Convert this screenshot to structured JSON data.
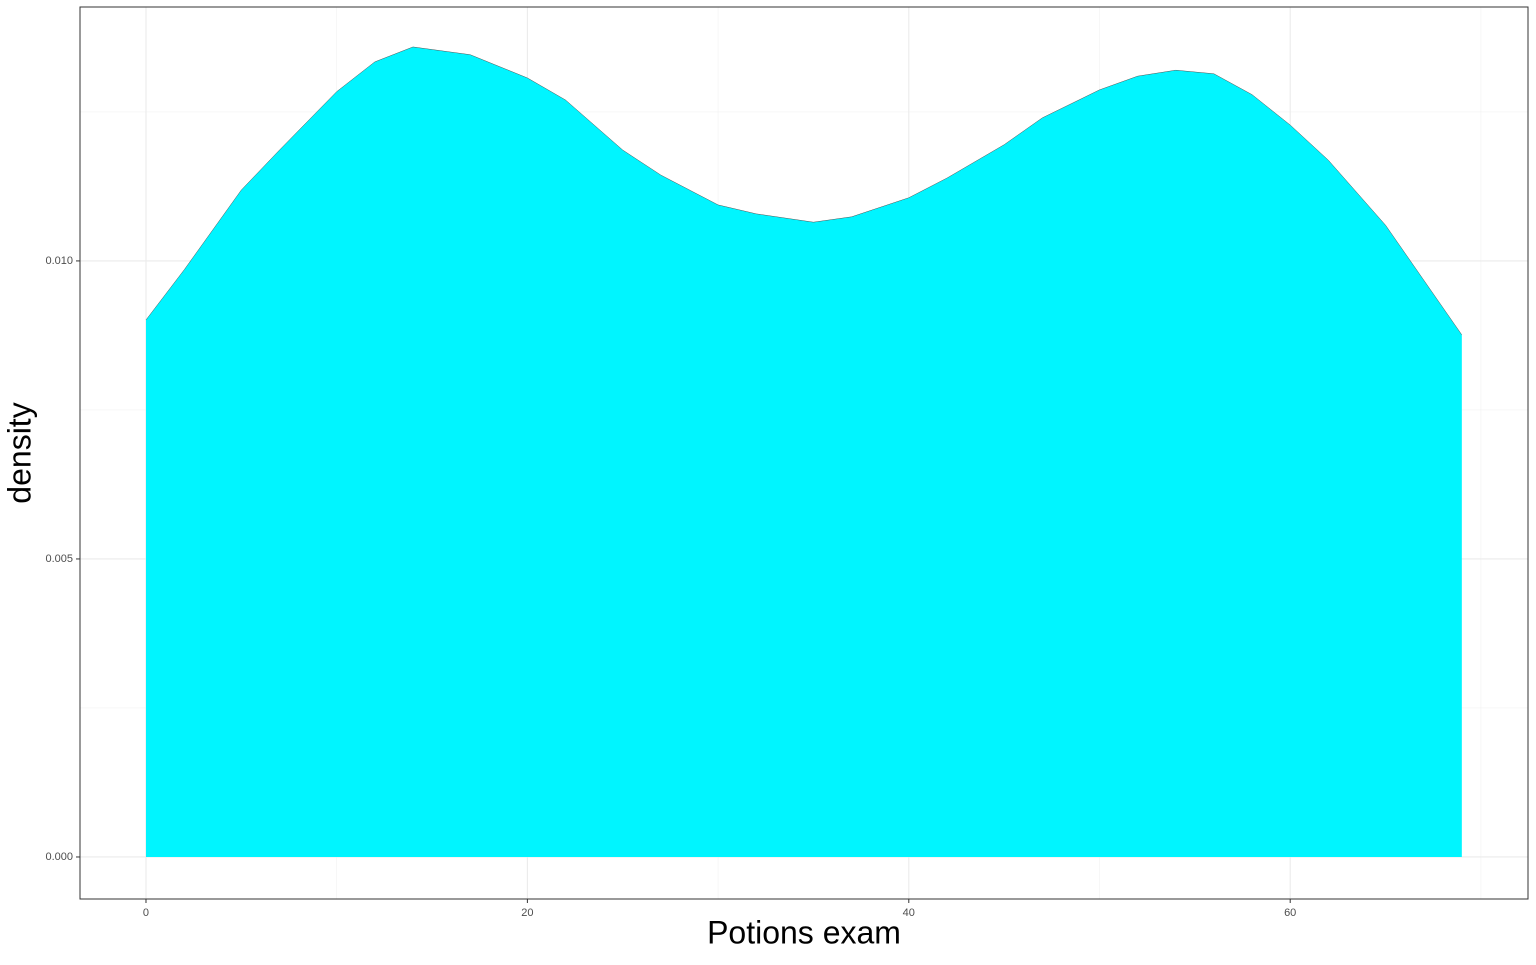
{
  "chart_data": {
    "type": "area",
    "x_label": "Potions exam",
    "y_label": "density",
    "x": [
      0,
      2,
      5,
      7,
      10,
      12,
      14,
      17,
      20,
      22,
      25,
      27,
      30,
      32,
      35,
      37,
      40,
      42,
      45,
      47,
      50,
      52,
      54,
      56,
      58,
      60,
      62,
      65,
      67,
      69
    ],
    "values": [
      0.00901,
      0.00985,
      0.01119,
      0.01186,
      0.01284,
      0.01334,
      0.01359,
      0.01346,
      0.01307,
      0.0127,
      0.01186,
      0.01144,
      0.01094,
      0.01079,
      0.01065,
      0.01074,
      0.01106,
      0.01139,
      0.01195,
      0.0124,
      0.01287,
      0.0131,
      0.0132,
      0.01314,
      0.01279,
      0.01228,
      0.01169,
      0.0106,
      0.00968,
      0.00876
    ],
    "color": "#00f5ff",
    "xlim": [
      -3.46,
      72.47
    ],
    "ylim": [
      -0.000705,
      0.01426
    ],
    "xticks": [
      0,
      20,
      40,
      60
    ],
    "yticks": [
      {
        "value": 0,
        "label": "0.000"
      },
      {
        "value": 0.005,
        "label": "0.005"
      },
      {
        "value": 0.01,
        "label": "0.010"
      }
    ],
    "x_minor_grid": [
      10,
      30,
      50,
      70
    ],
    "y_minor_grid": [
      0.0025,
      0.0075,
      0.0125
    ],
    "grid": true
  }
}
